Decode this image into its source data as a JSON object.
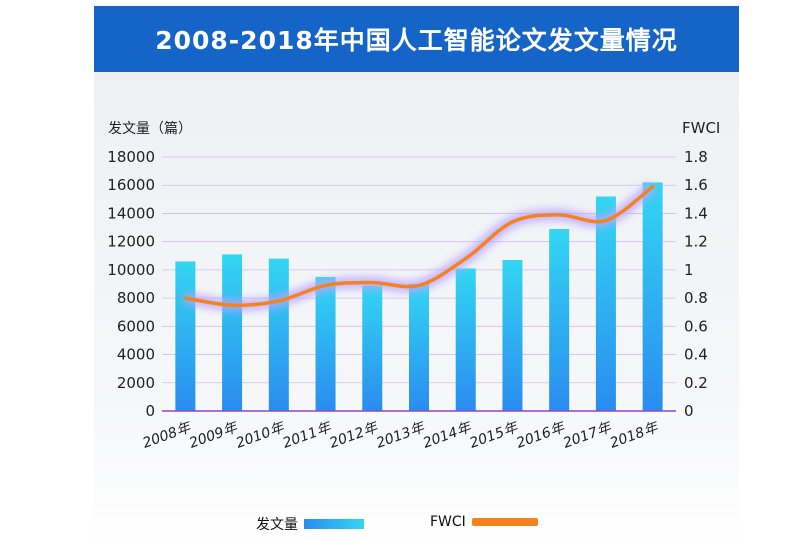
{
  "title": "2008-2018年中国人工智能论文发文量情况",
  "legend": {
    "bar_label": "发文量",
    "line_label": "FWCI"
  },
  "colors": {
    "title_bg": "#1565c8",
    "bar_top": "#33d6f2",
    "bar_bottom": "#2a8cf0",
    "line": "#f5821f",
    "line_glow": "#b8a6ff",
    "grid": "#b48fe8",
    "baseline": "#8b46d6"
  },
  "chart_data": {
    "type": "bar",
    "categories": [
      "2008年",
      "2009年",
      "2010年",
      "2011年",
      "2012年",
      "2013年",
      "2014年",
      "2015年",
      "2016年",
      "2017年",
      "2018年"
    ],
    "series": [
      {
        "name": "发文量",
        "type": "bar",
        "axis": "left",
        "values": [
          10600,
          11100,
          10800,
          9500,
          8900,
          9000,
          10100,
          10700,
          12900,
          15200,
          16200
        ]
      },
      {
        "name": "FWCI",
        "type": "line",
        "axis": "right",
        "values": [
          0.8,
          0.75,
          0.78,
          0.89,
          0.91,
          0.89,
          1.08,
          1.34,
          1.39,
          1.35,
          1.59
        ]
      }
    ],
    "ylabel_left": "发文量（篇）",
    "ylabel_right": "FWCI",
    "ylim_left": [
      0,
      18000
    ],
    "ylim_right": [
      0,
      1.8
    ],
    "yticks_left": [
      "0",
      "2000",
      "4000",
      "6000",
      "8000",
      "10000",
      "12000",
      "14000",
      "16000",
      "18000"
    ],
    "yticks_right": [
      "0",
      "0.2",
      "0.4",
      "0.6",
      "0.8",
      "1",
      "1.2",
      "1.4",
      "1.6",
      "1.8"
    ],
    "grid": true,
    "legend_position": "bottom"
  }
}
